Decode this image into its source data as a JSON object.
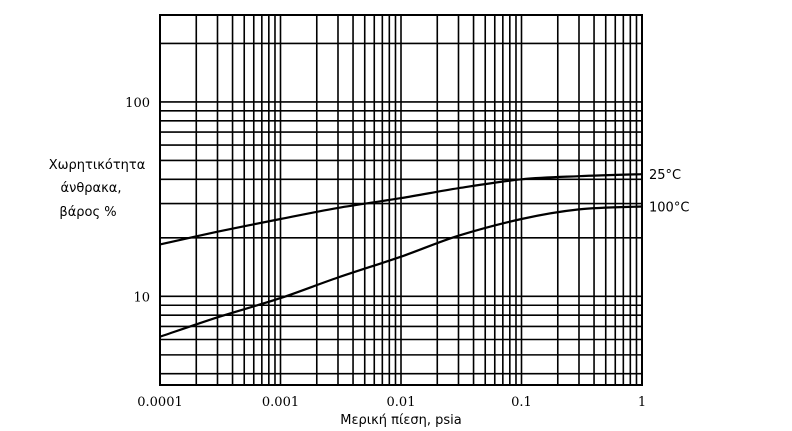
{
  "chart_data": {
    "type": "line",
    "xscale": "log",
    "yscale": "log",
    "xlim": [
      0.0001,
      1
    ],
    "ylim": [
      3.5,
      280
    ],
    "grid": true,
    "xlabel": "Μερική πίεση, psia",
    "ylabel_lines": [
      "Χωρητικότητα",
      "άνθρακα,",
      "βάρος %"
    ],
    "x_ticks": [
      {
        "value": 0.0001,
        "label": "0.0001"
      },
      {
        "value": 0.001,
        "label": "0.001"
      },
      {
        "value": 0.01,
        "label": "0.01"
      },
      {
        "value": 0.1,
        "label": "0.1"
      },
      {
        "value": 1,
        "label": "1"
      }
    ],
    "y_ticks": [
      {
        "value": 10,
        "label": "10"
      },
      {
        "value": 100,
        "label": "100"
      }
    ],
    "series": [
      {
        "name": "25°C",
        "x": [
          0.0001,
          0.0003,
          0.001,
          0.003,
          0.01,
          0.03,
          0.1,
          0.3,
          1
        ],
        "y": [
          18.5,
          21.5,
          25,
          28.5,
          32,
          36,
          40,
          41.5,
          42.5
        ]
      },
      {
        "name": "100°C",
        "x": [
          0.0001,
          0.0003,
          0.001,
          0.003,
          0.01,
          0.03,
          0.1,
          0.3,
          1
        ],
        "y": [
          6.2,
          7.8,
          9.8,
          12.5,
          16,
          20.5,
          25,
          28,
          29
        ]
      }
    ]
  }
}
